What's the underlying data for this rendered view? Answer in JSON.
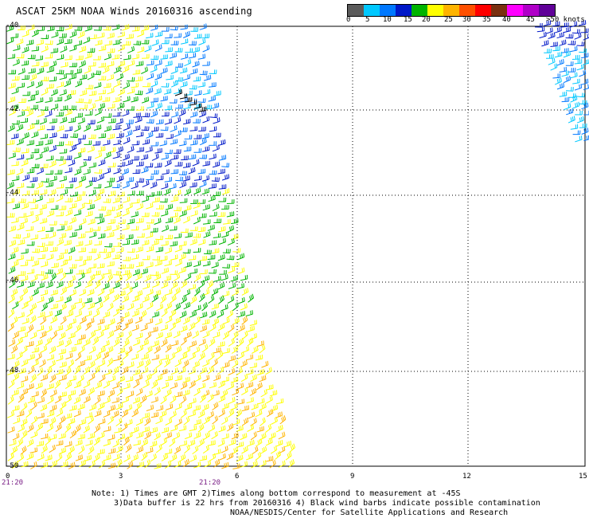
{
  "title": "ASCAT 25KM NOAA Winds 20160316 ascending",
  "legend": {
    "colors": [
      "#5b5b5b",
      "#00c8ff",
      "#0078ff",
      "#0018c8",
      "#00b400",
      "#ffff00",
      "#ffb400",
      "#ff5000",
      "#ff0000",
      "#7a3010",
      "#ff00ff",
      "#b000c8",
      "#600098"
    ],
    "labels": [
      "0",
      "5",
      "10",
      "15",
      "20",
      "25",
      "30",
      "35",
      "40",
      "45",
      ">50 knots"
    ],
    "speed_bins_knots": [
      0,
      5,
      10,
      15,
      20,
      25,
      30,
      35,
      40,
      45,
      50
    ]
  },
  "axes": {
    "latitude_labels": [
      "-40",
      "-42",
      "-44",
      "-46",
      "-48",
      "-50"
    ],
    "longitude_labels": [
      "0",
      "3",
      "6",
      "9",
      "12",
      "15"
    ],
    "time_labels": [
      "21:20",
      "21:20"
    ]
  },
  "notes": {
    "line1": "Note: 1) Times are GMT 2)Times along bottom correspond to measurement at -45S",
    "line2": "3)Data buffer is 22 hrs from 20160316 4) Black wind barbs indicate possible contamination",
    "line3": "NOAA/NESDIS/Center for Satellite Applications and Research"
  },
  "map": {
    "lat_range": [
      -50,
      -40
    ],
    "lon_range": [
      0,
      15
    ],
    "grid": "dotted",
    "wind_swaths": [
      {
        "name": "western swath",
        "time": "21:20",
        "dominant_speeds_knots": "15-30"
      },
      {
        "name": "northeast corner swath",
        "dominant_speeds_knots": "5-15"
      }
    ]
  }
}
